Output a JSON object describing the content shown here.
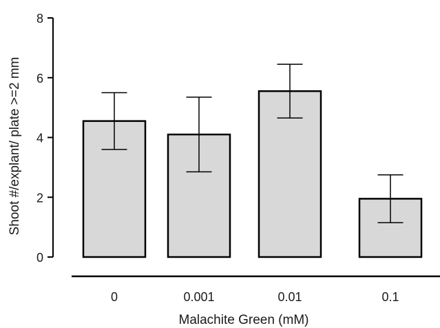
{
  "chart_data": {
    "type": "bar",
    "title": "",
    "xlabel": "Malachite Green (mM)",
    "ylabel": "Shoot #/explant/ plate >=2 mm",
    "categories": [
      "0",
      "0.001",
      "0.01",
      "0.1"
    ],
    "values": [
      4.55,
      4.1,
      5.55,
      1.95
    ],
    "errors": [
      0.95,
      1.25,
      0.9,
      0.8
    ],
    "ylim": [
      0,
      8
    ],
    "yticks": [
      0,
      2,
      4,
      6,
      8
    ],
    "grid": false,
    "legend": "none",
    "colors": {
      "bar_fill": "#d8d8d8",
      "bar_stroke": "#000000",
      "axis": "#000000"
    }
  }
}
